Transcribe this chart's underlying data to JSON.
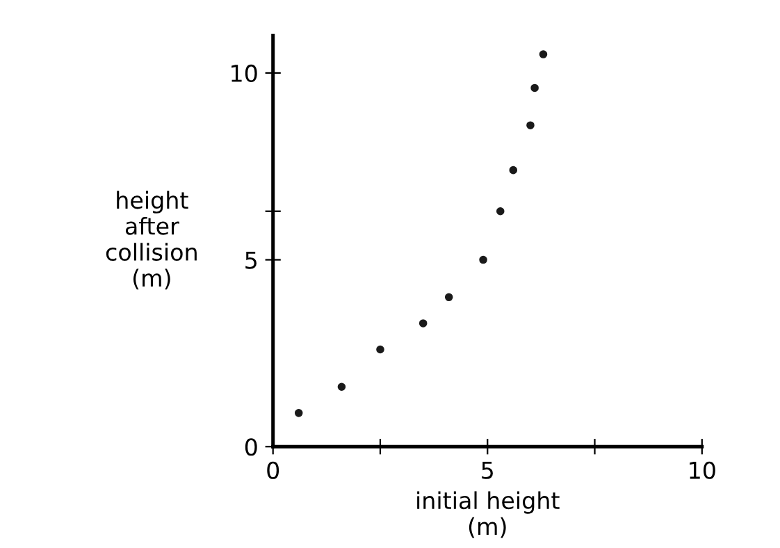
{
  "chart_data": {
    "type": "scatter",
    "xlabel": "initial height\n(m)",
    "ylabel": "height\nafter\ncollision\n(m)",
    "x": [
      0.6,
      1.6,
      2.5,
      3.5,
      4.1,
      4.9,
      5.3,
      5.6,
      6.0,
      6.1,
      6.3
    ],
    "series": [
      {
        "color": "#1a1a1a",
        "values": [
          0.9,
          1.6,
          2.6,
          3.3,
          4.0,
          5.0,
          6.3,
          7.4,
          8.6,
          9.6,
          10.5
        ]
      }
    ],
    "xlim": [
      0,
      10
    ],
    "ylim": [
      0,
      11
    ],
    "xticks": [
      0,
      {
        "value": 2.5,
        "label": null
      },
      5,
      {
        "value": 7.5,
        "label": null
      },
      10
    ],
    "yticks": [
      0,
      5,
      {
        "value": 6.3,
        "label": null
      },
      10
    ],
    "marker": "circle",
    "grid": false,
    "legend": false
  }
}
